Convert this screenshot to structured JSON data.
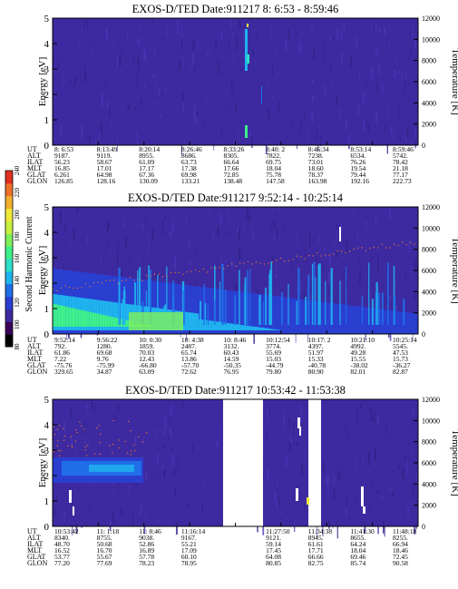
{
  "colorbar": {
    "label": "Second Harmonic Current",
    "ticks": [
      "80",
      "100",
      "120",
      "140",
      "160",
      "180",
      "200",
      "220",
      "240"
    ],
    "colors": [
      "#000000",
      "#3a005a",
      "#3c2aa0",
      "#2a3ed0",
      "#1f6ee8",
      "#1fb4ee",
      "#2ee0c8",
      "#3ef08a",
      "#7ef05a",
      "#c8f040",
      "#f0e838",
      "#f0b030",
      "#ee7028",
      "#e03020"
    ]
  },
  "panels": [
    {
      "title": "EXOS-D/TED   Date:911217   8: 6:53 - 8:59:46",
      "ylabel_left": "Energy [eV]",
      "ylabel_right": "Temperature [K]",
      "yticks_left": [
        "0",
        "1",
        "2",
        "3",
        "4",
        "5"
      ],
      "yticks_right": [
        "0",
        "2000",
        "4000",
        "6000",
        "8000",
        "10000",
        "12000"
      ],
      "rows": [
        {
          "label": "UT",
          "values": [
            "8: 6:53",
            "8:13:49",
            "8:20:14",
            "8:26:46",
            "8:33:26",
            "8:40: 2",
            "8:46:34",
            "8:53:14",
            "8:59:46"
          ]
        },
        {
          "label": "ALT",
          "values": [
            "9187.",
            "9119.",
            "8955.",
            "8686.",
            "8305.",
            "7822.",
            "7238.",
            "6534.",
            "5742."
          ]
        },
        {
          "label": "ILAT",
          "values": [
            "56.23",
            "58.67",
            "61.09",
            "63.73",
            "66.64",
            "69.75",
            "73.01",
            "76.26",
            "78.42"
          ]
        },
        {
          "label": "MLT",
          "values": [
            "16.85",
            "17.01",
            "17.17",
            "17.38",
            "17.66",
            "18.04",
            "18.60",
            "19.54",
            "21.18"
          ]
        },
        {
          "label": "GLAT",
          "values": [
            "6.261",
            "64.98",
            "67.36",
            "69.98",
            "72.85",
            "75.78",
            "78.37",
            "79.44",
            "77.17"
          ]
        },
        {
          "label": "GLON",
          "values": [
            "126.85",
            "128.16",
            "130.09",
            "133.21",
            "138.48",
            "147.58",
            "163.98",
            "192.16",
            "222.73"
          ]
        }
      ]
    },
    {
      "title": "EXOS-D/TED   Date:911217   9:52:14 - 10:25:14",
      "ylabel_left": "Energy [eV]",
      "ylabel_right": "Temperature [K]",
      "yticks_left": [
        "0",
        "1",
        "2",
        "3",
        "4",
        "5"
      ],
      "yticks_right": [
        "0",
        "2000",
        "4000",
        "6000",
        "8000",
        "10000",
        "12000"
      ],
      "rows": [
        {
          "label": "UT",
          "values": [
            "9:52:14",
            "9:56:22",
            "10: 0:30",
            "10: 4:38",
            "10: 8:46",
            "10:12:54",
            "10:17: 2",
            "10:21:10",
            "10:25:14"
          ]
        },
        {
          "label": "ALT",
          "values": [
            "792.",
            "1280.",
            "1859.",
            "2487.",
            "3132.",
            "3774.",
            "4397.",
            "4992.",
            "5545."
          ]
        },
        {
          "label": "ILAT",
          "values": [
            "61.86",
            "69.68",
            "70.03",
            "65.74",
            "60.43",
            "55.69",
            "51.97",
            "49.28",
            "47.53"
          ]
        },
        {
          "label": "MLT",
          "values": [
            "7.22",
            "9.76",
            "12.43",
            "13.86",
            "14.59",
            "15.03",
            "15.33",
            "15.55",
            "15.73"
          ]
        },
        {
          "label": "GLAT",
          "values": [
            "-75.76",
            "-75.99",
            "-66.80",
            "-57.70",
            "-50.35",
            "-44.79",
            "-40.78",
            "-38.02",
            "-36.27"
          ]
        },
        {
          "label": "GLON",
          "values": [
            "329.65",
            "34.87",
            "63.09",
            "72.62",
            "76.95",
            "79.80",
            "80.90",
            "82.01",
            "82.87"
          ]
        }
      ]
    },
    {
      "title": "EXOS-D/TED   Date:911217   10:53:42 - 11:53:38",
      "ylabel_left": "Energy [eV]",
      "ylabel_right": "Temperature [K]",
      "yticks_left": [
        "0",
        "1",
        "2",
        "3",
        "4",
        "5"
      ],
      "yticks_right": [
        "0",
        "2000",
        "4000",
        "6000",
        "8000",
        "10000",
        "12000"
      ],
      "rows": [
        {
          "label": "UT",
          "values": [
            "10:53:42",
            "11: 1:18",
            "11: 8:46",
            "11:16:14",
            "",
            "11:27:50",
            "11:34:38",
            "11:41:30",
            "11:48:18"
          ]
        },
        {
          "label": "ALT",
          "values": [
            "8340.",
            "8755.",
            "9038.",
            "9167.",
            "",
            "9121.",
            "8945.",
            "8655.",
            "8255."
          ]
        },
        {
          "label": "ILAT",
          "values": [
            "48.70",
            "50.68",
            "52.86",
            "55.21",
            "",
            "59.14",
            "61.61",
            "64.24",
            "66.94"
          ]
        },
        {
          "label": "MLT",
          "values": [
            "16.52",
            "16.70",
            "16.89",
            "17.09",
            "",
            "17.45",
            "17.71",
            "18.04",
            "18.46"
          ]
        },
        {
          "label": "GLAT",
          "values": [
            "53.77",
            "55.67",
            "57.78",
            "60.10",
            "",
            "64.08",
            "66.66",
            "69.46",
            "72.45"
          ]
        },
        {
          "label": "GLON",
          "values": [
            "77.20",
            "77.69",
            "78.23",
            "78.95",
            "",
            "80.85",
            "82.75",
            "85.74",
            "90.58"
          ]
        }
      ]
    }
  ],
  "chart_data": [
    {
      "type": "heatmap",
      "title": "EXOS-D/TED   Date:911217   8: 6:53 - 8:59:46",
      "xlabel": "UT",
      "ylabel": "Energy [eV]",
      "ylabel_right": "Temperature [K]",
      "ylim": [
        0,
        5
      ],
      "ylim_right": [
        0,
        12000
      ],
      "x": [
        "8: 6:53",
        "8:13:49",
        "8:20:14",
        "8:26:46",
        "8:33:26",
        "8:40: 2",
        "8:46:34",
        "8:53:14",
        "8:59:46"
      ],
      "colorbar_label": "Second Harmonic Current",
      "colorbar_range": [
        80,
        240
      ]
    },
    {
      "type": "heatmap",
      "title": "EXOS-D/TED   Date:911217   9:52:14 - 10:25:14",
      "xlabel": "UT",
      "ylabel": "Energy [eV]",
      "ylabel_right": "Temperature [K]",
      "ylim": [
        0,
        5
      ],
      "ylim_right": [
        0,
        12000
      ],
      "x": [
        "9:52:14",
        "9:56:22",
        "10: 0:30",
        "10: 4:38",
        "10: 8:46",
        "10:12:54",
        "10:17: 2",
        "10:21:10",
        "10:25:14"
      ],
      "colorbar_label": "Second Harmonic Current",
      "colorbar_range": [
        80,
        240
      ]
    },
    {
      "type": "heatmap",
      "title": "EXOS-D/TED   Date:911217   10:53:42 - 11:53:38",
      "xlabel": "UT",
      "ylabel": "Energy [eV]",
      "ylabel_right": "Temperature [K]",
      "ylim": [
        0,
        5
      ],
      "ylim_right": [
        0,
        12000
      ],
      "x": [
        "10:53:42",
        "11: 1:18",
        "11: 8:46",
        "11:16:14",
        "11:27:50",
        "11:34:38",
        "11:41:30",
        "11:48:18"
      ],
      "colorbar_label": "Second Harmonic Current",
      "colorbar_range": [
        80,
        240
      ]
    }
  ]
}
